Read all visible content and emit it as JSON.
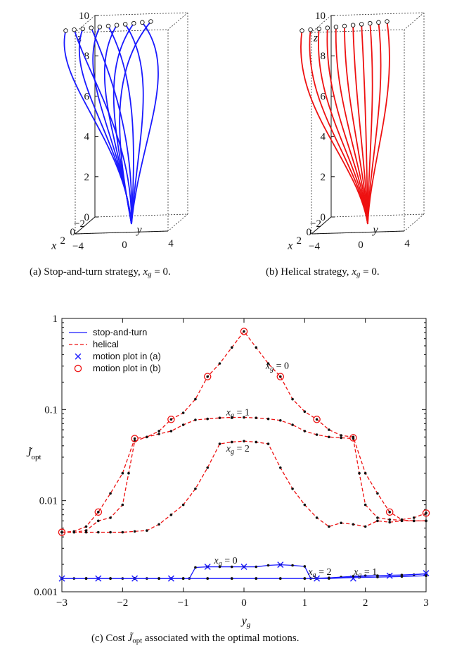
{
  "figure": {
    "caption_a": "(a)  Stop-and-turn strategy, ",
    "caption_a_math": "x",
    "caption_a_sub": "g",
    "caption_a_tail": " = 0.",
    "caption_b": "(b)  Helical strategy, ",
    "caption_b_math": "x",
    "caption_b_sub": "g",
    "caption_b_tail": " = 0.",
    "caption_c_pre": "(c)  Cost ",
    "caption_c_math": "J̃",
    "caption_c_sub": "opt",
    "caption_c_tail": " associated with the optimal motions."
  },
  "chart_data": [
    {
      "type": "line3d",
      "panel": "a",
      "title": "Stop-and-turn strategy, x_g = 0",
      "xlabel": "x",
      "ylabel": "y",
      "zlabel": "z",
      "xlim": [
        -2,
        2
      ],
      "ylim": [
        -4,
        4
      ],
      "zlim": [
        0,
        10
      ],
      "x_ticks": [
        "−2",
        "0",
        "2"
      ],
      "y_ticks": [
        "−4",
        "0",
        "4"
      ],
      "z_ticks": [
        "0",
        "2",
        "4",
        "6",
        "8",
        "10"
      ],
      "color": "#1a1aff",
      "start": [
        0,
        0,
        0
      ],
      "endpoint_x": 0,
      "endpoint_y": [
        -3,
        -2.4,
        -1.8,
        -1.2,
        -0.6,
        0,
        0.6,
        1.2,
        1.8,
        2.4,
        3
      ],
      "endpoint_z": 10
    },
    {
      "type": "line3d",
      "panel": "b",
      "title": "Helical strategy, x_g = 0",
      "xlabel": "x",
      "ylabel": "y",
      "zlabel": "z",
      "xlim": [
        -2,
        2
      ],
      "ylim": [
        -4,
        4
      ],
      "zlim": [
        0,
        10
      ],
      "x_ticks": [
        "−2",
        "0",
        "2"
      ],
      "y_ticks": [
        "−4",
        "0",
        "4"
      ],
      "z_ticks": [
        "0",
        "2",
        "4",
        "6",
        "8",
        "10"
      ],
      "color": "#ee1111",
      "start": [
        0,
        0,
        0
      ],
      "endpoint_x": 0,
      "endpoint_y": [
        -3,
        -2.4,
        -1.8,
        -1.2,
        -0.6,
        0,
        0.6,
        1.2,
        1.8,
        2.4,
        3
      ],
      "endpoint_z": 10
    },
    {
      "type": "line",
      "panel": "c",
      "yscale": "log",
      "xlabel": "y_g",
      "ylabel": "J̃_opt",
      "xlim": [
        -3,
        3
      ],
      "ylim": [
        0.001,
        1
      ],
      "x_ticks": [
        "−3",
        "−2",
        "−1",
        "0",
        "1",
        "2",
        "3"
      ],
      "y_ticks": [
        "0.001",
        "0.01",
        "0.1",
        "1"
      ],
      "legend": {
        "position": "top-left",
        "entries": [
          "stop-and-turn",
          "helical",
          "motion plot in (a)",
          "motion plot in (b)"
        ]
      },
      "annotations": [
        {
          "text": "x_g = 0",
          "x": 0.55,
          "y": 0.3
        },
        {
          "text": "x_g = 1",
          "x": -0.1,
          "y": 0.093
        },
        {
          "text": "x_g = 2",
          "x": -0.1,
          "y": 0.037
        },
        {
          "text": "x_g = 0",
          "x": -0.3,
          "y": 0.00218
        },
        {
          "text": "x_g = 2",
          "x": 1.25,
          "y": 0.00165
        },
        {
          "text": "x_g = 1",
          "x": 2.0,
          "y": 0.00165
        }
      ],
      "series": [
        {
          "name": "helical x_g = 0",
          "style": "helical",
          "x": [
            -3,
            -2.8,
            -2.6,
            -2.4,
            -2.2,
            -2.0,
            -1.8,
            -1.6,
            -1.4,
            -1.2,
            -1.0,
            -0.8,
            -0.6,
            -0.4,
            -0.2,
            0,
            0.2,
            0.4,
            0.6,
            0.8,
            1.0,
            1.2,
            1.4,
            1.6,
            1.8,
            2.0,
            2.2,
            2.4,
            2.6,
            2.8,
            3
          ],
          "values": [
            0.0045,
            0.0046,
            0.0052,
            0.0075,
            0.012,
            0.02,
            0.048,
            0.05,
            0.058,
            0.078,
            0.092,
            0.13,
            0.23,
            0.32,
            0.48,
            0.72,
            0.48,
            0.32,
            0.23,
            0.13,
            0.095,
            0.078,
            0.06,
            0.052,
            0.05,
            0.02,
            0.012,
            0.0075,
            0.0062,
            0.0065,
            0.0073
          ]
        },
        {
          "name": "helical x_g = 1",
          "style": "helical",
          "x": [
            -3,
            -2.8,
            -2.6,
            -2.4,
            -2.2,
            -2.0,
            -1.9,
            -1.8,
            -1.6,
            -1.4,
            -1.2,
            -1.0,
            -0.8,
            -0.6,
            -0.4,
            -0.2,
            0,
            0.2,
            0.4,
            0.6,
            0.8,
            1.0,
            1.2,
            1.4,
            1.6,
            1.8,
            1.9,
            2.0,
            2.2,
            2.4,
            2.6,
            2.8,
            3
          ],
          "values": [
            0.0045,
            0.0045,
            0.0047,
            0.006,
            0.0065,
            0.009,
            0.02,
            0.045,
            0.05,
            0.054,
            0.058,
            0.068,
            0.077,
            0.079,
            0.081,
            0.082,
            0.082,
            0.081,
            0.079,
            0.076,
            0.068,
            0.058,
            0.053,
            0.05,
            0.049,
            0.048,
            0.02,
            0.009,
            0.0065,
            0.0062,
            0.0061,
            0.006,
            0.006
          ]
        },
        {
          "name": "helical x_g = 2",
          "style": "helical",
          "x": [
            -3,
            -2.8,
            -2.6,
            -2.4,
            -2.2,
            -2.0,
            -1.8,
            -1.6,
            -1.4,
            -1.2,
            -1.0,
            -0.8,
            -0.6,
            -0.4,
            -0.2,
            0,
            0.2,
            0.4,
            0.6,
            0.8,
            1.0,
            1.2,
            1.4,
            1.6,
            1.8,
            2.0,
            2.2,
            2.4,
            2.6,
            2.8,
            3
          ],
          "values": [
            0.0045,
            0.0045,
            0.0045,
            0.0045,
            0.0045,
            0.0045,
            0.0046,
            0.0047,
            0.0055,
            0.007,
            0.009,
            0.0135,
            0.023,
            0.042,
            0.044,
            0.045,
            0.044,
            0.042,
            0.023,
            0.0135,
            0.009,
            0.0065,
            0.0052,
            0.0057,
            0.0055,
            0.0052,
            0.006,
            0.0058,
            0.006,
            0.006,
            0.006
          ]
        },
        {
          "name": "stop-and-turn x_g = 0",
          "style": "stopturn",
          "x": [
            -3,
            -2.8,
            -2.6,
            -2.4,
            -2.2,
            -2.0,
            -1.8,
            -1.6,
            -1.4,
            -1.2,
            -1.0,
            -0.9,
            -0.8,
            -0.6,
            -0.4,
            -0.2,
            0,
            0.2,
            0.4,
            0.6,
            0.8,
            1.0,
            1.1,
            1.2,
            1.4,
            1.6,
            1.8,
            2.0,
            2.2,
            2.4,
            2.6,
            2.8,
            3
          ],
          "values": [
            0.0014,
            0.0014,
            0.0014,
            0.0014,
            0.0014,
            0.0014,
            0.0014,
            0.0014,
            0.0014,
            0.0014,
            0.0014,
            0.0014,
            0.00185,
            0.00188,
            0.00188,
            0.00188,
            0.00188,
            0.00188,
            0.00195,
            0.00198,
            0.00195,
            0.0019,
            0.0014,
            0.0014,
            0.00142,
            0.00145,
            0.00148,
            0.0015,
            0.0015,
            0.00152,
            0.00152,
            0.00154,
            0.00158
          ]
        },
        {
          "name": "stop-and-turn x_g = 1",
          "style": "stopturn",
          "x": [
            -3,
            -2.6,
            -2.2,
            -1.8,
            -1.4,
            -1.0,
            -0.6,
            -0.2,
            0.2,
            0.6,
            1.0,
            1.4,
            1.8,
            2.2,
            2.6,
            3
          ],
          "values": [
            0.0014,
            0.0014,
            0.0014,
            0.0014,
            0.0014,
            0.0014,
            0.0014,
            0.0014,
            0.0014,
            0.0014,
            0.0014,
            0.00142,
            0.00146,
            0.0015,
            0.00153,
            0.00157
          ]
        },
        {
          "name": "stop-and-turn x_g = 2",
          "style": "stopturn",
          "x": [
            -3,
            -2.6,
            -2.2,
            -1.8,
            -1.4,
            -1.0,
            -0.6,
            -0.2,
            0.2,
            0.6,
            1.0,
            1.4,
            1.8,
            2.2,
            2.6,
            3
          ],
          "values": [
            0.0014,
            0.0014,
            0.0014,
            0.0014,
            0.0014,
            0.0014,
            0.0014,
            0.0014,
            0.0014,
            0.0014,
            0.0014,
            0.0014,
            0.00143,
            0.00145,
            0.00147,
            0.0015
          ]
        },
        {
          "name": "motion plot in (a)",
          "style": "marker-x",
          "x": [
            -3,
            -2.4,
            -1.8,
            -1.2,
            -0.6,
            0,
            0.6,
            1.2,
            1.8,
            2.4,
            3
          ],
          "values": [
            0.0014,
            0.0014,
            0.0014,
            0.0014,
            0.00188,
            0.00188,
            0.00198,
            0.0014,
            0.0014,
            0.0015,
            0.0016
          ]
        },
        {
          "name": "motion plot in (b)",
          "style": "marker-o",
          "x": [
            -3,
            -2.4,
            -1.8,
            -1.2,
            -0.6,
            0,
            0.6,
            1.2,
            1.8,
            2.4,
            3
          ],
          "values": [
            0.0045,
            0.0075,
            0.048,
            0.078,
            0.23,
            0.72,
            0.23,
            0.078,
            0.049,
            0.0075,
            0.0073
          ]
        }
      ]
    }
  ]
}
